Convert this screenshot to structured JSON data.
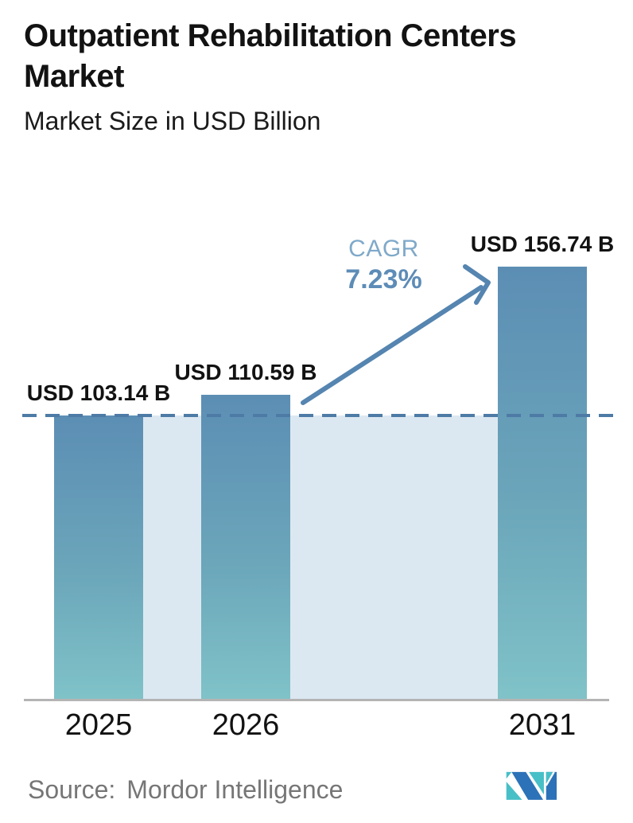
{
  "header": {
    "title": "Outpatient Rehabilitation Centers Market",
    "subtitle": "Market Size in USD Billion"
  },
  "cagr": {
    "label": "CAGR",
    "value": "7.23%"
  },
  "footer": {
    "source_label": "Source:",
    "source_name": "Mordor Intelligence",
    "logo": "mordor-intelligence-logo"
  },
  "colors": {
    "bar_gradient_top": "#5c8eb4",
    "bar_gradient_bottom": "#80c3c8",
    "band_fill": "#dce8f1",
    "dashed_reference_line": "#4e7ba6",
    "arrow": "#5585b0",
    "cagr_label": "#7fa9c9",
    "cagr_value": "#5d8cb7",
    "axis": "#b4b4b4",
    "text": "#121212",
    "source_text": "#767676",
    "logo_teal": "#47bfc7",
    "logo_blue": "#2c72b8"
  },
  "chart_data": {
    "type": "bar",
    "title": "Outpatient Rehabilitation Centers Market",
    "subtitle": "Market Size in USD Billion",
    "categories": [
      "2025",
      "2026",
      "2031"
    ],
    "values": [
      103.14,
      110.59,
      156.74
    ],
    "bar_labels": [
      "USD 103.14 B",
      "USD 110.59 B",
      "USD 156.74 B"
    ],
    "unit": "USD Billion",
    "ylim": [
      0,
      200
    ],
    "grid": false,
    "legend": false,
    "annotations": {
      "cagr_text": "CAGR",
      "cagr_value": "7.23%",
      "dashed_reference_value": 103.14,
      "arrow": "from 2026 bar to 2031 bar"
    }
  }
}
